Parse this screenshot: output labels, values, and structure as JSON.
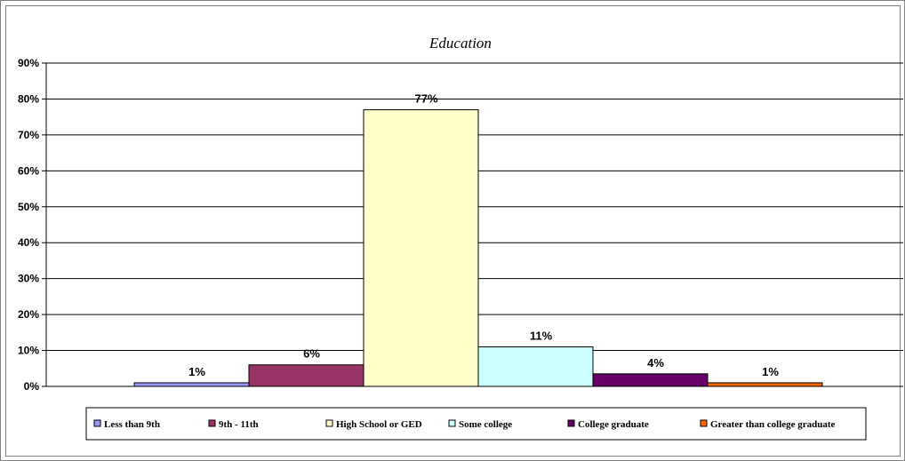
{
  "chart_data": {
    "type": "bar",
    "title": "Education",
    "xlabel": "",
    "ylabel": "",
    "ylim": [
      0,
      90
    ],
    "yticks": [
      "0%",
      "10%",
      "20%",
      "30%",
      "40%",
      "50%",
      "60%",
      "70%",
      "80%",
      "90%"
    ],
    "grid": true,
    "legend_position": "bottom",
    "series": [
      {
        "name": "Less than 9th",
        "value": 1,
        "label": "1%",
        "color": "#9999ff"
      },
      {
        "name": "9th - 11th",
        "value": 6,
        "label": "6%",
        "color": "#993366"
      },
      {
        "name": "High School or GED",
        "value": 77,
        "label": "77%",
        "color": "#ffffcc"
      },
      {
        "name": "Some college",
        "value": 11,
        "label": "11%",
        "color": "#ccffff"
      },
      {
        "name": "College graduate",
        "value": 3.5,
        "label": "4%",
        "color": "#660066"
      },
      {
        "name": "Greater than college graduate",
        "value": 1,
        "label": "1%",
        "color": "#ff6600"
      }
    ]
  }
}
